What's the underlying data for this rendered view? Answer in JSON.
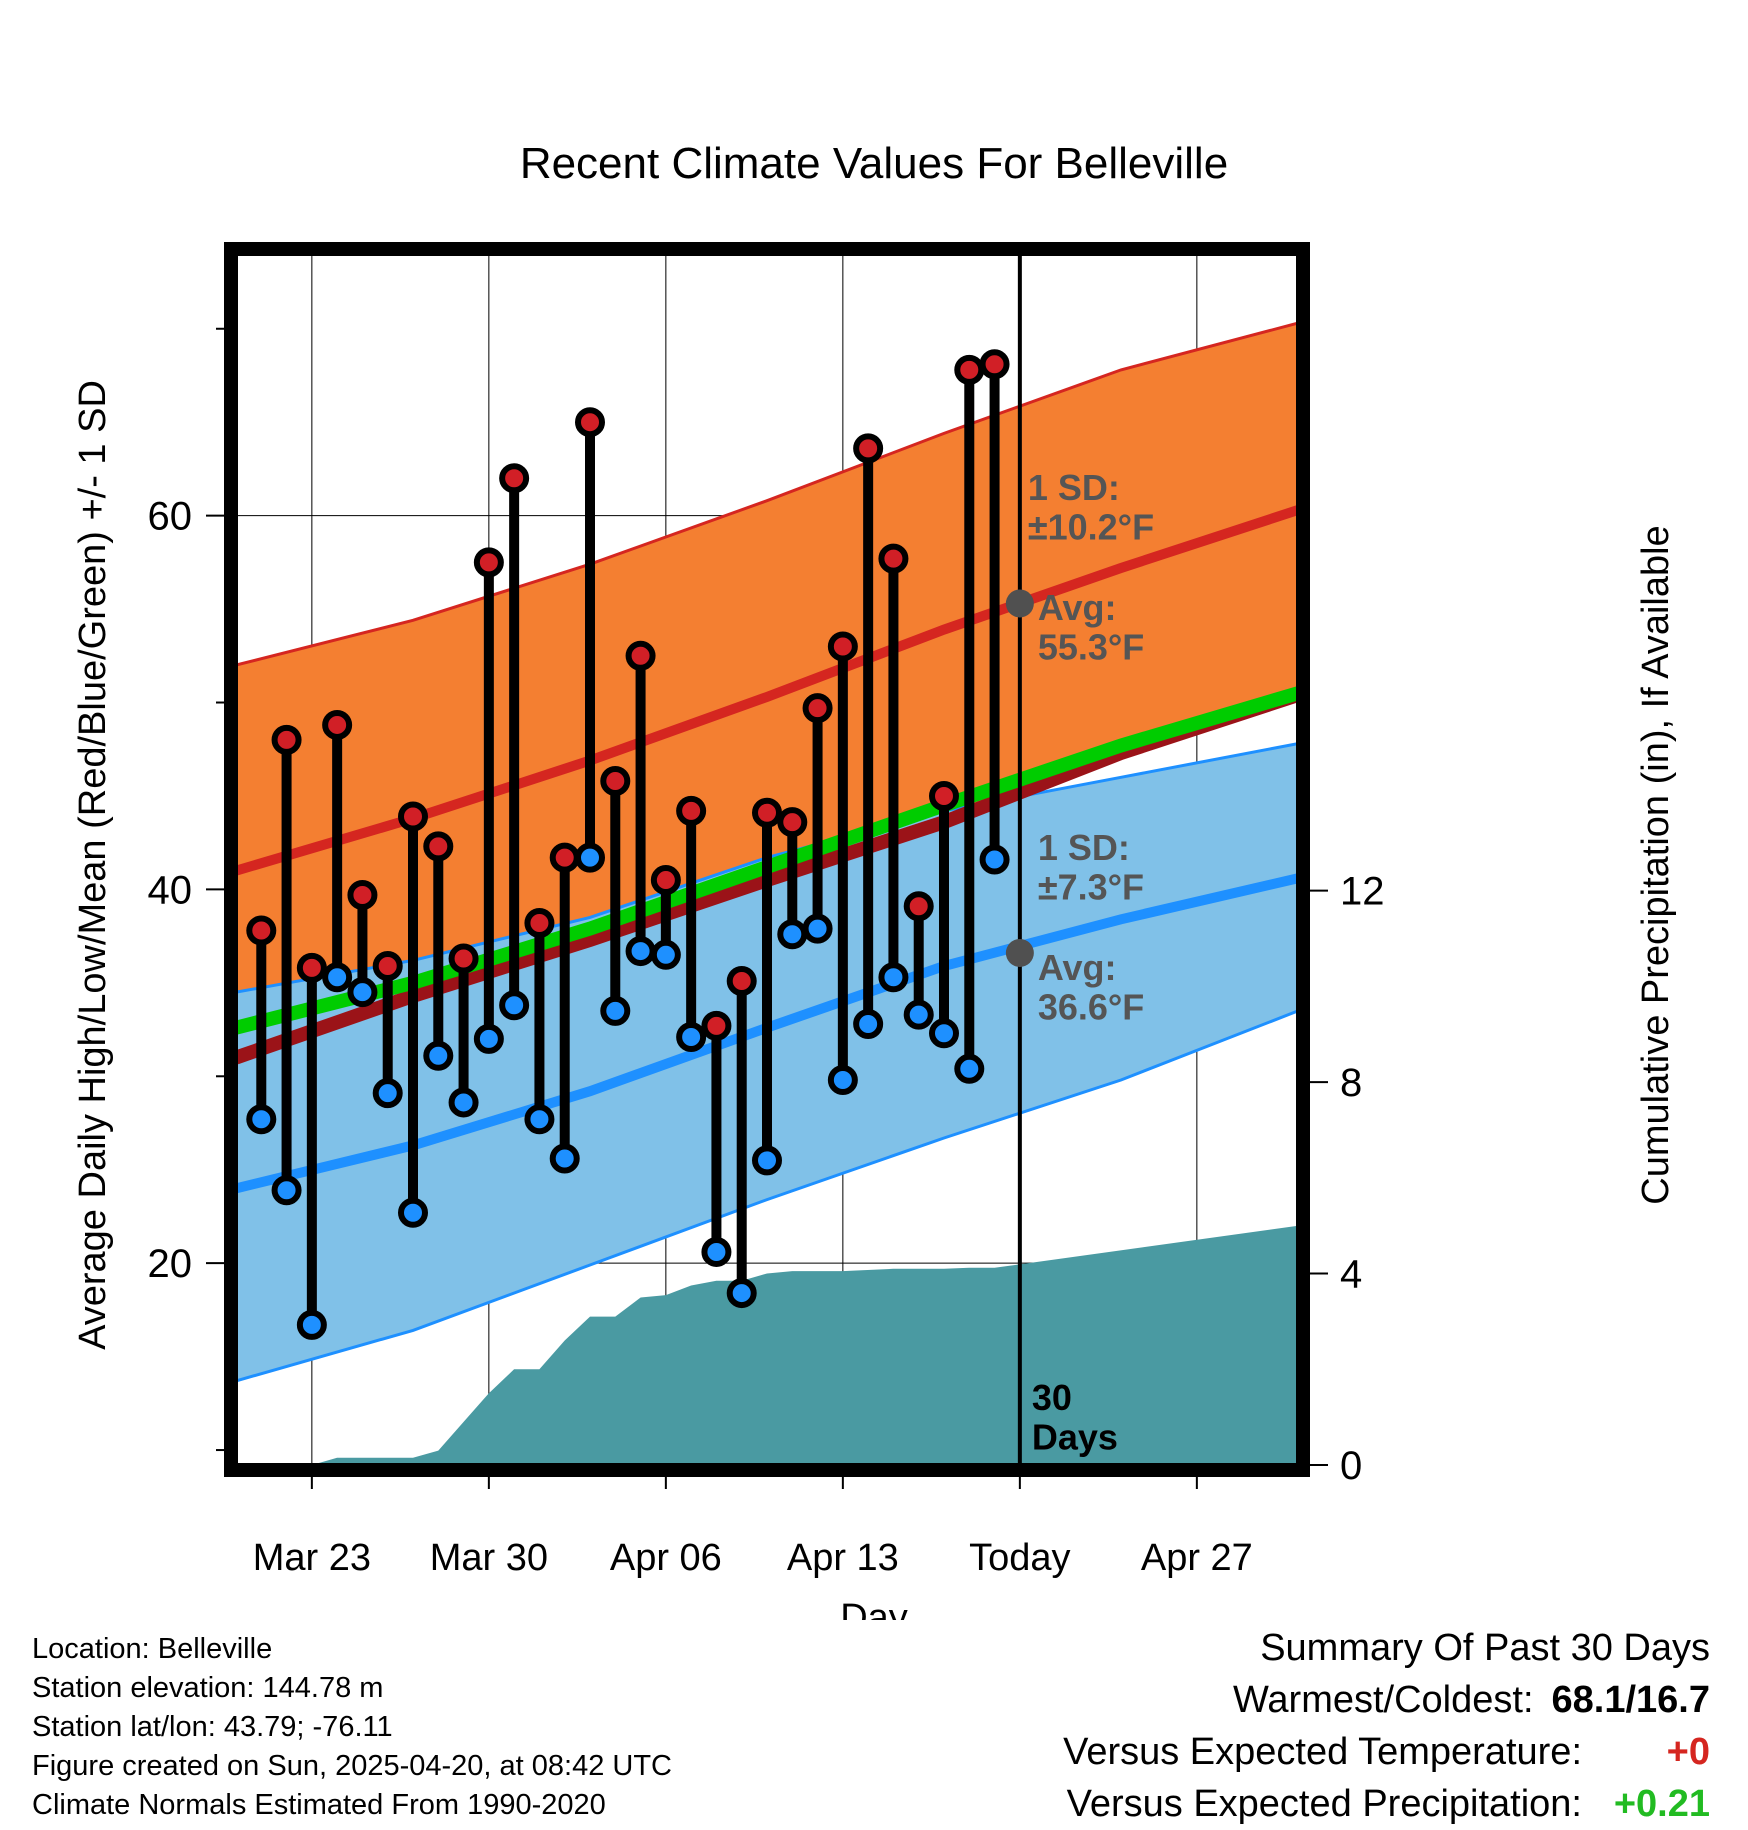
{
  "chart_data": {
    "type": "line",
    "title": "Recent Climate Values For Belleville",
    "xlabel": "Day",
    "ylabel": "Average Daily High/Low/Mean (Red/Blue/Green) +/- 1 SD",
    "y2label": "Cumulative Precipitation (in), If Available",
    "x_tick_labels": [
      "Mar 23",
      "Mar 30",
      "Apr 06",
      "Apr 13",
      "Today",
      "Apr 27"
    ],
    "y_ticks": [
      20,
      40,
      60
    ],
    "y2_ticks": [
      0,
      4,
      8,
      12
    ],
    "ylim": [
      9.2,
      74
    ],
    "y2lim": [
      0,
      25.3
    ],
    "xlim": [
      "Mar 20",
      "May 1"
    ],
    "grid": true,
    "today_label": "30\nDays",
    "normals": {
      "x": [
        "Mar 20",
        "Mar 27",
        "Apr 03",
        "Apr 10",
        "Apr 17",
        "Apr 24",
        "May 1"
      ],
      "high_mean": [
        41.0,
        43.8,
        46.9,
        50.3,
        53.9,
        57.2,
        60.3
      ],
      "high_upper": [
        52.0,
        54.4,
        57.4,
        60.8,
        64.4,
        67.8,
        70.3
      ],
      "high_lower": [
        31.0,
        34.3,
        37.3,
        40.5,
        43.6,
        47.3,
        50.4
      ],
      "low_mean": [
        24.0,
        26.3,
        29.2,
        32.6,
        35.9,
        38.4,
        40.6
      ],
      "low_upper": [
        34.5,
        36.2,
        38.5,
        41.7,
        44.2,
        46.0,
        47.8
      ],
      "low_lower": [
        13.7,
        16.4,
        19.9,
        23.4,
        26.7,
        29.8,
        33.5
      ],
      "daily_mean": [
        32.6,
        35.0,
        37.9,
        41.2,
        44.5,
        47.7,
        50.5
      ]
    },
    "annotations": {
      "high_sd": "1 SD:\n±10.2°F",
      "high_avg": "Avg:\n55.3°F",
      "low_sd": "1 SD:\n±7.3°F",
      "low_avg": "Avg:\n36.6°F",
      "today_high_avg": 55.3,
      "today_low_avg": 36.6
    },
    "daily": {
      "dates": [
        "Mar 21",
        "Mar 22",
        "Mar 23",
        "Mar 24",
        "Mar 25",
        "Mar 26",
        "Mar 27",
        "Mar 28",
        "Mar 29",
        "Mar 30",
        "Mar 31",
        "Apr 01",
        "Apr 02",
        "Apr 03",
        "Apr 04",
        "Apr 05",
        "Apr 06",
        "Apr 07",
        "Apr 08",
        "Apr 09",
        "Apr 10",
        "Apr 11",
        "Apr 12",
        "Apr 13",
        "Apr 14",
        "Apr 15",
        "Apr 16",
        "Apr 17",
        "Apr 18",
        "Apr 19"
      ],
      "high": [
        37.8,
        48.0,
        35.8,
        48.8,
        39.7,
        35.9,
        43.9,
        42.3,
        36.3,
        57.5,
        62.0,
        38.2,
        41.7,
        65.0,
        45.8,
        52.5,
        40.5,
        44.2,
        32.7,
        35.1,
        44.1,
        43.6,
        49.7,
        53.0,
        63.6,
        57.7,
        39.1,
        45.0,
        67.8,
        68.1
      ],
      "low": [
        27.7,
        23.9,
        16.7,
        35.3,
        34.5,
        29.1,
        22.7,
        31.1,
        28.6,
        32.0,
        33.8,
        27.7,
        25.6,
        41.7,
        33.5,
        36.7,
        36.5,
        32.1,
        20.6,
        18.4,
        25.5,
        37.6,
        37.9,
        29.8,
        32.8,
        35.3,
        33.3,
        32.3,
        30.4,
        41.6
      ]
    },
    "precipitation": {
      "x": [
        "Mar 20",
        "Mar 23",
        "Mar 24",
        "Mar 26",
        "Mar 27",
        "Mar 28",
        "Mar 29",
        "Mar 30",
        "Mar 31",
        "Apr 01",
        "Apr 02",
        "Apr 03",
        "Apr 04",
        "Apr 05",
        "Apr 06",
        "Apr 07",
        "Apr 08",
        "Apr 09",
        "Apr 10",
        "Apr 11",
        "Apr 13",
        "Apr 15",
        "Apr 16",
        "Apr 17",
        "Apr 18",
        "Apr 19",
        "May 1"
      ],
      "cumulative": [
        0,
        0,
        0.15,
        0.15,
        0.15,
        0.3,
        0.9,
        1.5,
        2.0,
        2.0,
        2.6,
        3.1,
        3.1,
        3.5,
        3.55,
        3.75,
        3.85,
        3.85,
        4.0,
        4.05,
        4.05,
        4.1,
        4.1,
        4.1,
        4.12,
        4.12,
        5.0
      ]
    },
    "precip_final": 5.0,
    "colors": {
      "high_band": "#f47f31",
      "high_line": "#d52620",
      "low_band": "#80c1e8",
      "low_line": "#1e90ff",
      "mean_line": "#00cc00",
      "precip": "#4a9aa2",
      "high_marker": "#d11f26",
      "low_marker": "#1e90ff",
      "marker_stem": "#000000",
      "avg_dot": "#505050"
    }
  },
  "footer": {
    "location": "Location: Belleville",
    "elevation": "Station elevation: 144.78 m",
    "latlon": "Station lat/lon: 43.79; -76.11",
    "created": "Figure created on Sun, 2025-04-20, at 08:42 UTC",
    "normals": "Climate Normals Estimated From 1990-2020"
  },
  "summary": {
    "title": "Summary Of Past 30 Days",
    "warm_cold_label": "Warmest/Coldest:",
    "warm_cold_value": "68.1/16.7",
    "temp_label": "Versus Expected Temperature:",
    "temp_value": "+0",
    "precip_label": "Versus Expected Precipitation:",
    "precip_value": "+0.21",
    "temp_color": "#d52620",
    "precip_color": "#22bb22"
  }
}
